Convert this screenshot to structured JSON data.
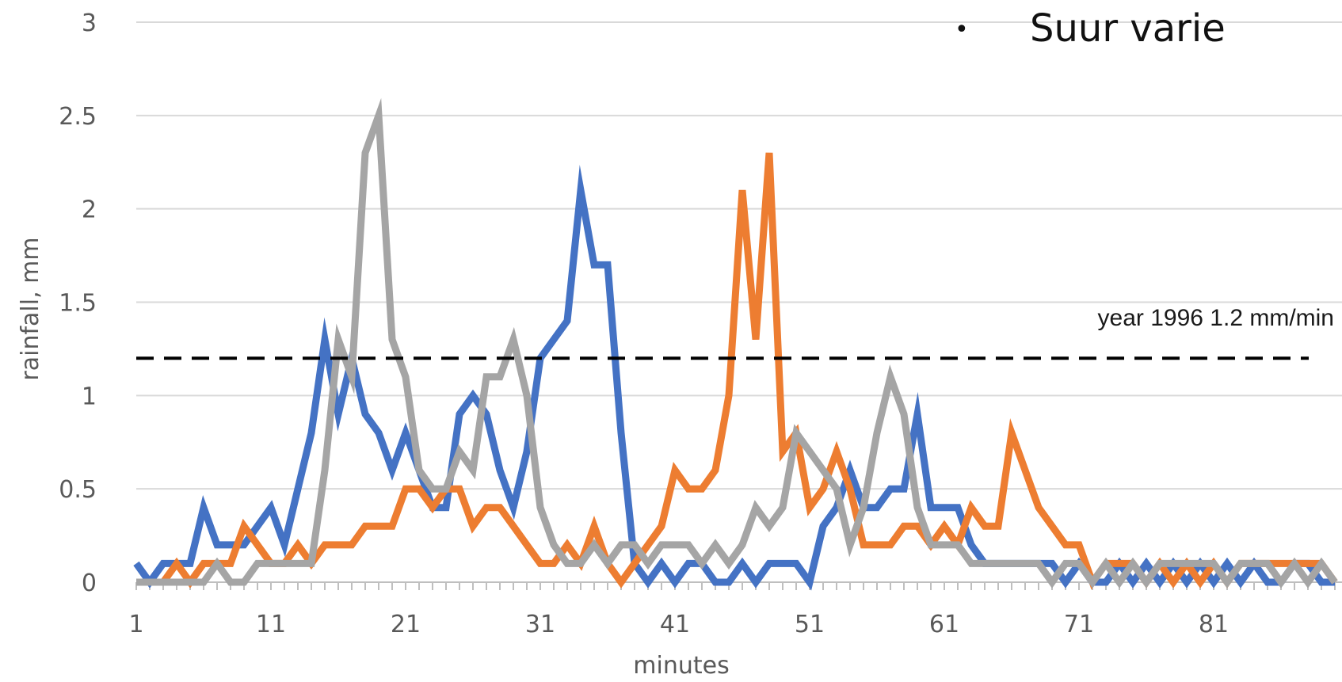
{
  "overlay": {
    "bullet_symbol": "•",
    "bullet_text": "Suur varie"
  },
  "chart_data": {
    "type": "line",
    "title": "",
    "xlabel": "minutes",
    "ylabel": "rainfall, mm",
    "x_start": 1,
    "x_ticks": [
      "1",
      "11",
      "21",
      "31",
      "41",
      "51",
      "61",
      "71",
      "81"
    ],
    "y_ticks": [
      "0",
      "0.5",
      "1",
      "1.5",
      "2",
      "2.5",
      "3"
    ],
    "ylim": [
      0,
      3
    ],
    "xlim": [
      1,
      90
    ],
    "grid": "horizontal",
    "legend": "none",
    "reference_line": {
      "value": 1.2,
      "label": "year 1996 1.2 mm/min",
      "style": "dashed",
      "color": "#000000"
    },
    "series": [
      {
        "color": "#4472C4",
        "values": [
          0.1,
          0,
          0.1,
          0.1,
          0.1,
          0.4,
          0.2,
          0.2,
          0.2,
          0.3,
          0.4,
          0.2,
          0.5,
          0.8,
          1.3,
          0.9,
          1.2,
          0.9,
          0.8,
          0.6,
          0.8,
          0.6,
          0.4,
          0.4,
          0.9,
          1.0,
          0.9,
          0.6,
          0.4,
          0.7,
          1.2,
          1.3,
          1.4,
          2.1,
          1.7,
          1.7,
          0.8,
          0.1,
          0,
          0.1,
          0,
          0.1,
          0.1,
          0,
          0,
          0.1,
          0,
          0.1,
          0.1,
          0.1,
          0,
          0.3,
          0.4,
          0.6,
          0.4,
          0.4,
          0.5,
          0.5,
          0.9,
          0.4,
          0.4,
          0.4,
          0.2,
          0.1,
          0.1,
          0.1,
          0.1,
          0.1,
          0.1,
          0,
          0.1,
          0,
          0,
          0.1,
          0,
          0.1,
          0,
          0.1,
          0,
          0.1,
          0,
          0.1,
          0,
          0.1,
          0,
          0,
          0.1,
          0.1,
          0,
          0
        ]
      },
      {
        "color": "#ED7D31",
        "values": [
          0,
          0,
          0,
          0.1,
          0,
          0.1,
          0.1,
          0.1,
          0.3,
          0.2,
          0.1,
          0.1,
          0.2,
          0.1,
          0.2,
          0.2,
          0.2,
          0.3,
          0.3,
          0.3,
          0.5,
          0.5,
          0.4,
          0.5,
          0.5,
          0.3,
          0.4,
          0.4,
          0.3,
          0.2,
          0.1,
          0.1,
          0.2,
          0.1,
          0.3,
          0.1,
          0,
          0.1,
          0.2,
          0.3,
          0.6,
          0.5,
          0.5,
          0.6,
          1.0,
          2.1,
          1.3,
          2.3,
          0.7,
          0.8,
          0.4,
          0.5,
          0.7,
          0.5,
          0.2,
          0.2,
          0.2,
          0.3,
          0.3,
          0.2,
          0.3,
          0.2,
          0.4,
          0.3,
          0.3,
          0.8,
          0.6,
          0.4,
          0.3,
          0.2,
          0.2,
          0,
          0.1,
          0.1,
          0.1,
          0,
          0.1,
          0,
          0.1,
          0,
          0.1,
          0,
          0.1,
          0.1,
          0.1,
          0.1,
          0.1,
          0.1,
          0.1,
          0
        ]
      },
      {
        "color": "#A5A5A5",
        "values": [
          0,
          0,
          0,
          0,
          0,
          0,
          0.1,
          0,
          0,
          0.1,
          0.1,
          0.1,
          0.1,
          0.1,
          0.6,
          1.3,
          1.1,
          2.3,
          2.5,
          1.3,
          1.1,
          0.6,
          0.5,
          0.5,
          0.7,
          0.6,
          1.1,
          1.1,
          1.3,
          1.0,
          0.4,
          0.2,
          0.1,
          0.1,
          0.2,
          0.1,
          0.2,
          0.2,
          0.1,
          0.2,
          0.2,
          0.2,
          0.1,
          0.2,
          0.1,
          0.2,
          0.4,
          0.3,
          0.4,
          0.8,
          0.7,
          0.6,
          0.5,
          0.2,
          0.4,
          0.8,
          1.1,
          0.9,
          0.4,
          0.2,
          0.2,
          0.2,
          0.1,
          0.1,
          0.1,
          0.1,
          0.1,
          0.1,
          0,
          0.1,
          0.1,
          0,
          0.1,
          0,
          0.1,
          0,
          0.1,
          0.1,
          0.1,
          0.1,
          0.1,
          0,
          0.1,
          0.1,
          0.1,
          0,
          0.1,
          0,
          0.1,
          0
        ]
      }
    ]
  }
}
